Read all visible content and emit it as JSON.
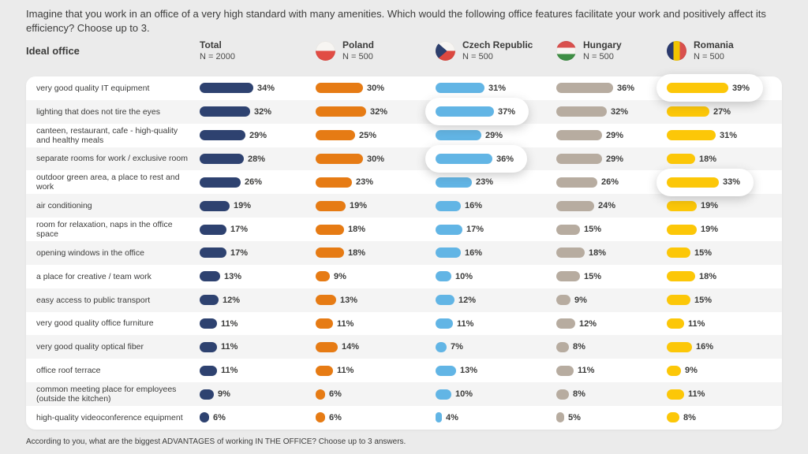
{
  "question": "Imagine that you work in an office of a very high standard with many amenities. Which would the following office features facilitate your work and positively affect its efficiency? Choose up to 3.",
  "row_header": "Ideal office",
  "footer": "According to you, what are the biggest ADVANTAGES of working IN THE OFFICE? Choose up to 3 answers.",
  "chart_data": {
    "type": "bar",
    "orientation": "horizontal",
    "unit": "%",
    "value_range": [
      0,
      39
    ],
    "categories": [
      "very good quality IT equipment",
      "lighting that does not tire the eyes",
      "canteen, restaurant, cafe - high-quality and healthy meals",
      "separate rooms for work / exclusive room",
      "outdoor green area, a place to rest and work",
      "air conditioning",
      "room for relaxation, naps in the office space",
      "opening windows in the office",
      "a place for creative / team work",
      "easy access to public transport",
      "very good quality office furniture",
      "very good quality optical fiber",
      "office roof terrace",
      "common meeting place for employees (outside the kitchen)",
      "high-quality videoconference equipment"
    ],
    "series": [
      {
        "name": "Total",
        "n": "N = 2000",
        "flag": null,
        "color": "#2e4270",
        "values": [
          34,
          32,
          29,
          28,
          26,
          19,
          17,
          17,
          13,
          12,
          11,
          11,
          11,
          9,
          6
        ]
      },
      {
        "name": "Poland",
        "n": "N = 500",
        "flag": "poland",
        "color": "#e67b14",
        "values": [
          30,
          32,
          25,
          30,
          23,
          19,
          18,
          18,
          9,
          13,
          11,
          14,
          11,
          6,
          6
        ]
      },
      {
        "name": "Czech Republic",
        "n": "N = 500",
        "flag": "czech",
        "color": "#62b5e5",
        "values": [
          31,
          37,
          29,
          36,
          23,
          16,
          17,
          16,
          10,
          12,
          11,
          7,
          13,
          10,
          4
        ]
      },
      {
        "name": "Hungary",
        "n": "N = 500",
        "flag": "hungary",
        "color": "#b7aca0",
        "values": [
          36,
          32,
          29,
          29,
          26,
          24,
          15,
          18,
          15,
          9,
          12,
          8,
          11,
          8,
          5
        ]
      },
      {
        "name": "Romania",
        "n": "N = 500",
        "flag": "romania",
        "color": "#fcc708",
        "values": [
          39,
          27,
          31,
          18,
          33,
          19,
          19,
          15,
          18,
          15,
          11,
          16,
          9,
          11,
          8
        ]
      }
    ],
    "highlights": [
      {
        "category_index": 0,
        "series_index": 4
      },
      {
        "category_index": 1,
        "series_index": 2
      },
      {
        "category_index": 3,
        "series_index": 2
      },
      {
        "category_index": 4,
        "series_index": 4
      }
    ],
    "legend_position": "top",
    "grid": false
  }
}
